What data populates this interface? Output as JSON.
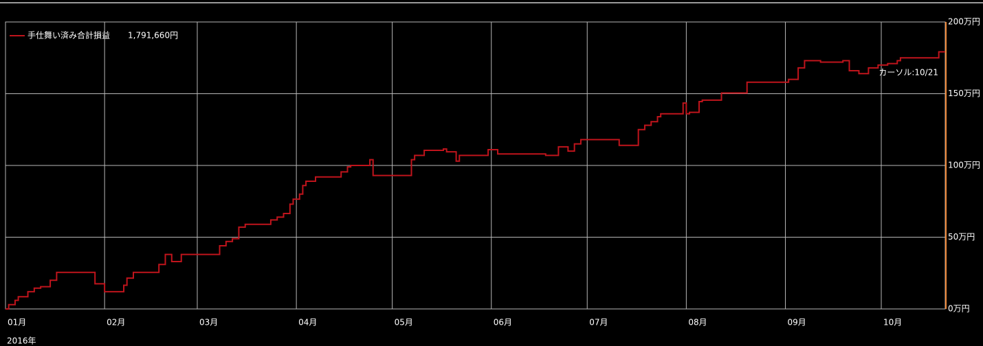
{
  "chart_data": {
    "type": "step-line",
    "series": [
      {
        "name": "手仕舞い済み合計損益",
        "color": "#c0141c",
        "x": [
          "2016-01-01",
          "2016-01-02",
          "2016-01-04",
          "2016-01-05",
          "2016-01-08",
          "2016-01-10",
          "2016-01-12",
          "2016-01-15",
          "2016-01-17",
          "2016-01-29",
          "2016-02-01",
          "2016-02-07",
          "2016-02-08",
          "2016-02-10",
          "2016-02-18",
          "2016-02-20",
          "2016-02-22",
          "2016-02-25",
          "2016-03-08",
          "2016-03-10",
          "2016-03-12",
          "2016-03-14",
          "2016-03-16",
          "2016-03-24",
          "2016-03-26",
          "2016-03-28",
          "2016-03-30",
          "2016-03-31",
          "2016-04-02",
          "2016-04-03",
          "2016-04-04",
          "2016-04-07",
          "2016-04-15",
          "2016-04-17",
          "2016-04-18",
          "2016-04-24",
          "2016-04-25",
          "2016-05-07",
          "2016-05-08",
          "2016-05-11",
          "2016-05-17",
          "2016-05-18",
          "2016-05-21",
          "2016-05-22",
          "2016-05-31",
          "2016-06-03",
          "2016-06-18",
          "2016-06-22",
          "2016-06-25",
          "2016-06-27",
          "2016-06-29",
          "2016-07-11",
          "2016-07-17",
          "2016-07-19",
          "2016-07-21",
          "2016-07-23",
          "2016-07-24",
          "2016-07-31",
          "2016-08-01",
          "2016-08-02",
          "2016-08-05",
          "2016-08-06",
          "2016-08-12",
          "2016-08-20",
          "2016-09-02",
          "2016-09-05",
          "2016-09-07",
          "2016-09-12",
          "2016-09-19",
          "2016-09-21",
          "2016-09-24",
          "2016-09-27",
          "2016-09-30",
          "2016-10-03",
          "2016-10-06",
          "2016-10-07",
          "2016-10-19"
        ],
        "values": [
          0,
          3,
          6,
          8.5,
          12,
          14.5,
          15.5,
          20,
          25.5,
          17.5,
          12,
          16.5,
          21.5,
          25.5,
          31,
          38,
          33,
          38,
          44,
          47,
          49,
          57,
          59,
          62,
          64,
          66.5,
          73,
          76.5,
          80,
          86,
          89,
          92,
          95.5,
          99,
          100,
          104,
          93,
          104,
          107,
          110.5,
          111.5,
          109.5,
          103,
          107,
          111,
          108,
          107,
          113,
          110,
          115,
          118,
          114,
          125,
          128,
          130.5,
          134,
          136,
          143.5,
          136,
          137,
          144.5,
          145.5,
          150.5,
          158,
          160,
          168,
          173,
          172,
          173,
          166,
          164,
          168,
          170,
          171,
          173,
          175,
          179.166
        ]
      }
    ],
    "total_label": "1,791,660円",
    "cursor_label": "カーソル:10/21",
    "x_year_label": "2016年",
    "xlim": [
      "2016-01-01",
      "2016-10-21"
    ],
    "xticks": [
      {
        "value": "2016-01-01",
        "label": "01月"
      },
      {
        "value": "2016-02-01",
        "label": "02月"
      },
      {
        "value": "2016-03-01",
        "label": "03月"
      },
      {
        "value": "2016-04-01",
        "label": "04月"
      },
      {
        "value": "2016-05-01",
        "label": "05月"
      },
      {
        "value": "2016-06-01",
        "label": "06月"
      },
      {
        "value": "2016-07-01",
        "label": "07月"
      },
      {
        "value": "2016-08-01",
        "label": "08月"
      },
      {
        "value": "2016-09-01",
        "label": "09月"
      },
      {
        "value": "2016-10-01",
        "label": "10月"
      }
    ],
    "ylim": [
      0,
      200
    ],
    "yticks": [
      {
        "value": 0,
        "label": "0万円"
      },
      {
        "value": 50,
        "label": "50万円"
      },
      {
        "value": 100,
        "label": "100万円"
      },
      {
        "value": 150,
        "label": "150万円"
      },
      {
        "value": 200,
        "label": "200万円"
      }
    ],
    "grid": true
  }
}
